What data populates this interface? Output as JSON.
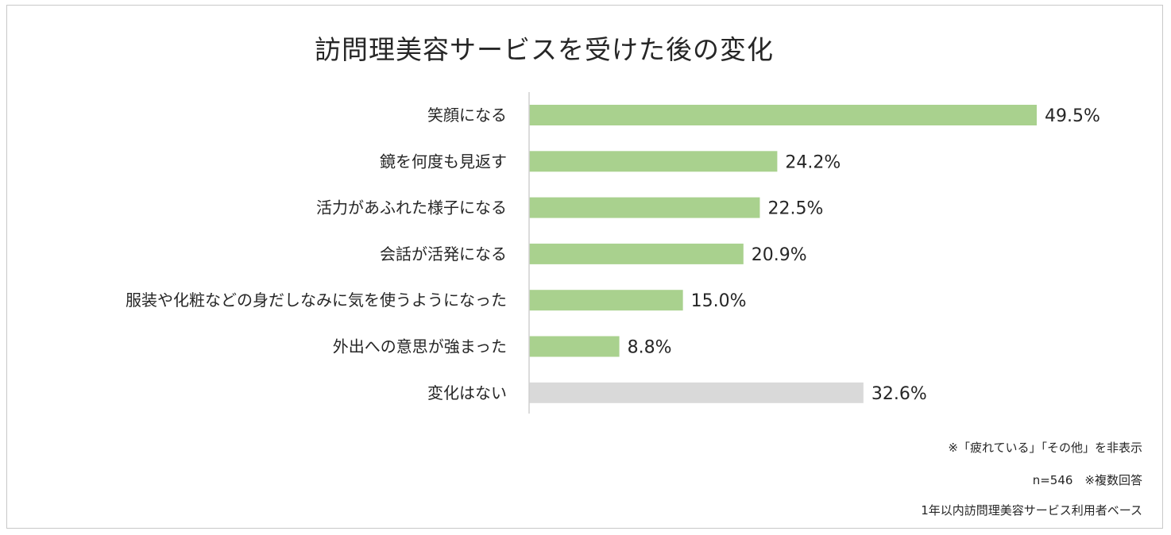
{
  "chart_data": {
    "type": "bar",
    "orientation": "horizontal",
    "title": "訪問理美容サービスを受けた後の変化",
    "categories": [
      "笑顔になる",
      "鏡を何度も見返す",
      "活力があふれた様子になる",
      "会話が活発になる",
      "服装や化粧などの身だしなみに気を使うようになった",
      "外出への意思が強まった",
      "変化はない"
    ],
    "values": [
      49.5,
      24.2,
      22.5,
      20.9,
      15.0,
      8.8,
      32.6
    ],
    "value_labels": [
      "49.5%",
      "24.2%",
      "22.5%",
      "20.9%",
      "15.0%",
      "8.8%",
      "32.6%"
    ],
    "colors": [
      "#a9d18e",
      "#a9d18e",
      "#a9d18e",
      "#a9d18e",
      "#a9d18e",
      "#a9d18e",
      "#d9d9d9"
    ],
    "xlim": [
      0,
      50
    ],
    "grid": false,
    "legend": "none"
  },
  "notes": {
    "hidden_items": "※「疲れている」「その他」を非表示",
    "sample": "n=546　※複数回答",
    "base": "1年以内訪問理美容サービス利用者ベース"
  }
}
